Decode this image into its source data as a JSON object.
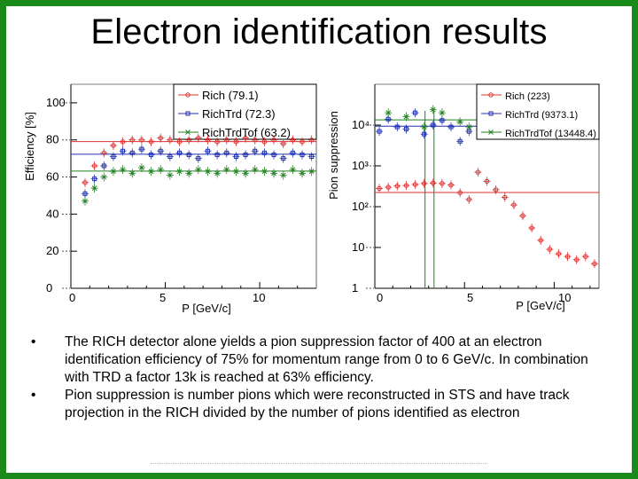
{
  "slide": {
    "title": "Electron identification results",
    "frame_color": "#1a8a1a",
    "bullets": [
      "The RICH detector alone yields a pion suppression factor of 400 at an electron identification efficiency of 75% for momentum range from 0 to 6 GeV/c. In combination with TRD a factor 13k is reached at 63% efficiency.",
      "Pion suppression is number pions which were reconstructed in STS and have track projection in the RICH divided by the number of pions identified as electron"
    ],
    "bullet_glyph": "•"
  },
  "chart_data": [
    {
      "type": "scatter",
      "title": "",
      "xlabel": "P [GeV/c]",
      "ylabel": "Efficiency [%]",
      "xlim": [
        0,
        13
      ],
      "ylim": [
        0,
        110
      ],
      "xticks": [
        "0",
        "5",
        "10"
      ],
      "yticks": [
        "0",
        "20",
        "40",
        "60",
        "80",
        "100"
      ],
      "legend_position": "top-right",
      "reference_lines": [
        79.1,
        72.3,
        63.2
      ],
      "series": [
        {
          "name": "Rich",
          "legend": "Rich (79.1)",
          "color": "#e03030",
          "marker": "circle",
          "x": [
            0.75,
            1.25,
            1.75,
            2.25,
            2.75,
            3.25,
            3.75,
            4.25,
            4.75,
            5.25,
            5.75,
            6.25,
            6.75,
            7.25,
            7.75,
            8.25,
            8.75,
            9.25,
            9.75,
            10.25,
            10.75,
            11.25,
            11.75,
            12.25,
            12.75
          ],
          "y": [
            57,
            66,
            73,
            77,
            79,
            80,
            80,
            79,
            81,
            80,
            79,
            80,
            81,
            80,
            79,
            80,
            79,
            81,
            80,
            79,
            80,
            78,
            80,
            79,
            80
          ]
        },
        {
          "name": "RichTrd",
          "legend": "RichTrd (72.3)",
          "color": "#2030b0",
          "marker": "square",
          "x": [
            0.75,
            1.25,
            1.75,
            2.25,
            2.75,
            3.25,
            3.75,
            4.25,
            4.75,
            5.25,
            5.75,
            6.25,
            6.75,
            7.25,
            7.75,
            8.25,
            8.75,
            9.25,
            9.75,
            10.25,
            10.75,
            11.25,
            11.75,
            12.25,
            12.75
          ],
          "y": [
            51,
            59,
            66,
            71,
            74,
            73,
            75,
            72,
            74,
            71,
            73,
            72,
            70,
            74,
            72,
            73,
            71,
            72,
            74,
            73,
            72,
            70,
            73,
            72,
            71
          ]
        },
        {
          "name": "RichTrdTof",
          "legend": "RichTrdTof (63.2)",
          "color": "#208020",
          "marker": "cross",
          "x": [
            0.75,
            1.25,
            1.75,
            2.25,
            2.75,
            3.25,
            3.75,
            4.25,
            4.75,
            5.25,
            5.75,
            6.25,
            6.75,
            7.25,
            7.75,
            8.25,
            8.75,
            9.25,
            9.75,
            10.25,
            10.75,
            11.25,
            11.75,
            12.25,
            12.75
          ],
          "y": [
            47,
            54,
            60,
            63,
            64,
            62,
            65,
            63,
            64,
            61,
            63,
            62,
            64,
            63,
            62,
            64,
            63,
            62,
            64,
            63,
            62,
            61,
            64,
            62,
            63
          ]
        }
      ]
    },
    {
      "type": "scatter",
      "title": "",
      "xlabel": "P [GeV/c]",
      "ylabel": "Pion suppression",
      "xlim": [
        0,
        12.5
      ],
      "ylim": [
        1,
        100000
      ],
      "y_scale": "log",
      "xticks": [
        "0",
        "5",
        "10"
      ],
      "yticks": [
        "1",
        "10",
        "10²",
        "10³",
        "10⁴"
      ],
      "legend_position": "top-right",
      "reference_lines": [
        223,
        9373.1,
        13448.4
      ],
      "series": [
        {
          "name": "Rich",
          "legend": "Rich (223)",
          "color": "#e03030",
          "marker": "circle",
          "x": [
            0.25,
            0.75,
            1.25,
            1.75,
            2.25,
            2.75,
            3.25,
            3.75,
            4.25,
            4.75,
            5.25,
            5.75,
            6.25,
            6.75,
            7.25,
            7.75,
            8.25,
            8.75,
            9.25,
            9.75,
            10.25,
            10.75,
            11.25,
            11.75,
            12.25
          ],
          "y": [
            280,
            300,
            320,
            330,
            350,
            370,
            380,
            370,
            340,
            220,
            150,
            700,
            420,
            260,
            170,
            110,
            60,
            30,
            15,
            9,
            7,
            6,
            5,
            6,
            4
          ]
        },
        {
          "name": "RichTrd",
          "legend": "RichTrd (9373.1)",
          "color": "#2030b0",
          "marker": "square",
          "x": [
            0.25,
            0.75,
            1.25,
            1.75,
            2.25,
            2.75,
            3.25,
            3.75,
            4.25,
            4.75,
            5.25
          ],
          "y": [
            7000,
            14000,
            9000,
            8000,
            20000,
            6000,
            10000,
            13000,
            9000,
            4000,
            7000
          ]
        },
        {
          "name": "RichTrdTof",
          "legend": "RichTrdTof (13448.4)",
          "color": "#208020",
          "marker": "cross",
          "x": [
            0.75,
            1.75,
            2.75,
            3.25,
            3.75,
            4.75,
            5.25
          ],
          "y": [
            20000,
            16000,
            9000,
            24000,
            20000,
            12000,
            9000
          ]
        }
      ]
    }
  ]
}
